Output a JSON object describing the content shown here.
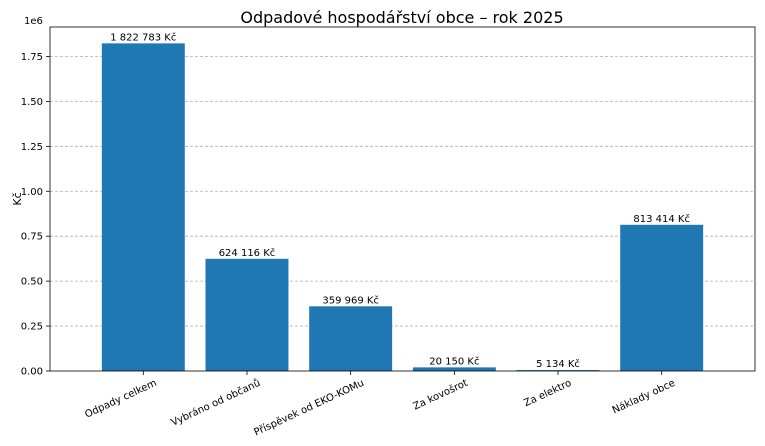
{
  "chart_data": {
    "type": "bar",
    "title": "Odpadové hospodářství obce – rok 2025",
    "ylabel": "Kč",
    "xlabel": "",
    "y_offset_text": "1e6",
    "y_scale": 1000000,
    "ylim": [
      0,
      1913922
    ],
    "yticks": [
      0,
      250000,
      500000,
      750000,
      1000000,
      1250000,
      1500000,
      1750000
    ],
    "ytick_labels": [
      "0.00",
      "0.25",
      "0.50",
      "0.75",
      "1.00",
      "1.25",
      "1.50",
      "1.75"
    ],
    "grid": true,
    "categories": [
      "Odpady celkem",
      "Vybráno od občanů",
      "Příspěvek od EKO-KOMu",
      "Za kovošrot",
      "Za elektro",
      "Náklady obce"
    ],
    "values": [
      1822783,
      624116,
      359969,
      20150,
      5134,
      813414
    ],
    "data_labels": [
      "1 822 783 Kč",
      "624 116 Kč",
      "359 969 Kč",
      "20 150 Kč",
      "5 134 Kč",
      "813 414 Kč"
    ],
    "bar_color": "#1f77b4"
  }
}
